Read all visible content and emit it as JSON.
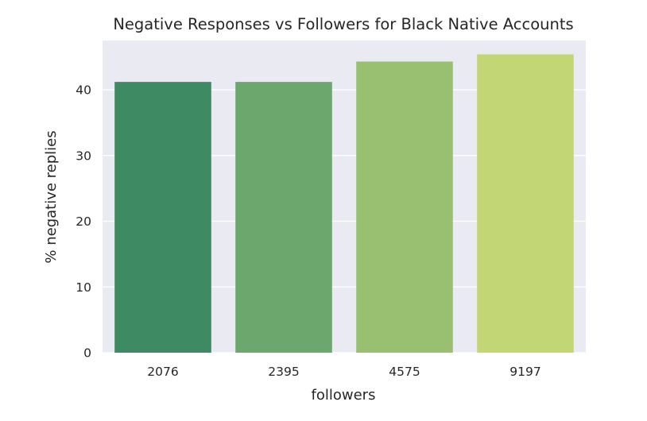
{
  "chart_data": {
    "type": "bar",
    "title": "Negative Responses vs Followers for Black Native Accounts",
    "xlabel": "followers",
    "ylabel": "% negative replies",
    "categories": [
      "2076",
      "2395",
      "4575",
      "9197"
    ],
    "values": [
      41.2,
      41.2,
      44.3,
      45.4
    ],
    "ylim": [
      0,
      47.5
    ],
    "yticks": [
      "0",
      "10",
      "20",
      "30",
      "40"
    ],
    "grid": true,
    "colors": [
      "#3e8a63",
      "#6ca86e",
      "#99bf71",
      "#c3d676"
    ],
    "background": "#eaeaf2",
    "grid_color": "#ffffff"
  }
}
